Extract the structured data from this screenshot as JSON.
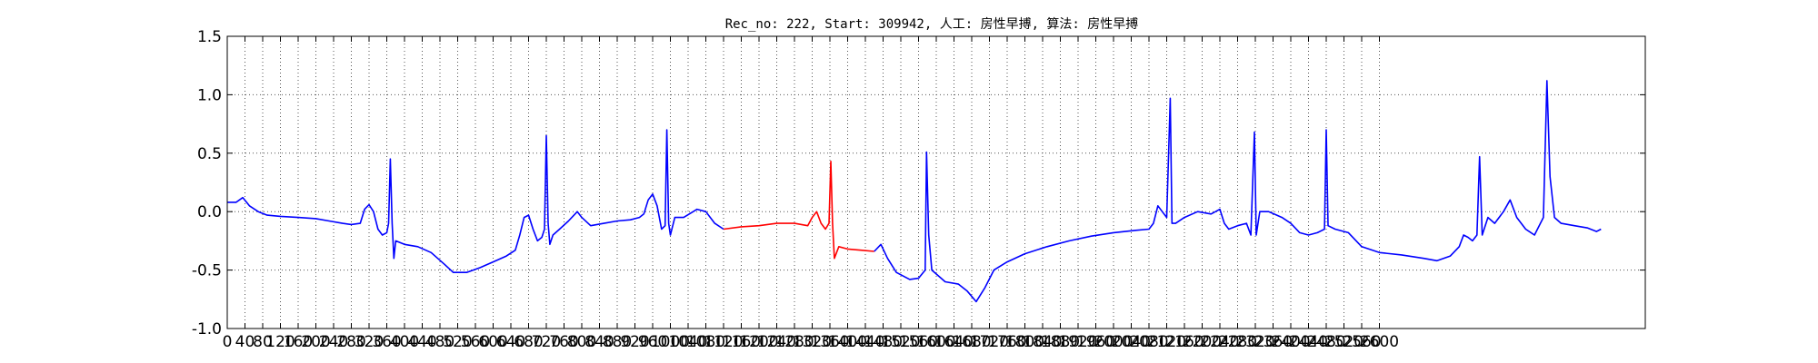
{
  "chart_data": {
    "type": "line",
    "title": "Rec_no: 222, Start: 309942, 人工: 房性早搏, 算法: 房性早搏",
    "xlabel": "",
    "ylabel": "",
    "xlim": [
      0,
      3200
    ],
    "ylim": [
      -1.0,
      1.5
    ],
    "grid": true,
    "x_ticks": [
      0,
      40,
      80,
      120,
      160,
      200,
      240,
      280,
      320,
      360,
      400,
      440,
      480,
      520,
      560,
      600,
      640,
      680,
      720,
      760,
      800,
      840,
      880,
      920,
      960,
      1000,
      1040,
      1080,
      1120,
      1160,
      1200,
      1240,
      1280,
      1320,
      1360,
      1400,
      1440,
      1480,
      1520,
      1560,
      1600,
      1640,
      1680,
      1720,
      1760,
      1800,
      1840,
      1880,
      1920,
      1960,
      2000,
      2040,
      2080,
      2120,
      2160,
      2200,
      2240,
      2280,
      2320,
      2360,
      2400,
      2440,
      2480,
      2520,
      2560,
      2600
    ],
    "y_ticks": [
      "-1.0",
      "-0.5",
      "0.0",
      "0.5",
      "1.0",
      "1.5"
    ],
    "colors": {
      "normal": "#0000ff",
      "highlight": "#ff0000"
    },
    "highlight_range": [
      1150,
      1470
    ],
    "series": [
      {
        "points": [
          [
            0,
            0.08
          ],
          [
            20,
            0.08
          ],
          [
            35,
            0.12
          ],
          [
            50,
            0.05
          ],
          [
            70,
            0.0
          ],
          [
            90,
            -0.03
          ],
          [
            120,
            -0.04
          ],
          [
            160,
            -0.05
          ],
          [
            200,
            -0.06
          ],
          [
            230,
            -0.08
          ],
          [
            260,
            -0.1
          ],
          [
            280,
            -0.11
          ],
          [
            300,
            -0.1
          ],
          [
            310,
            0.02
          ],
          [
            320,
            0.06
          ],
          [
            330,
            0.0
          ],
          [
            340,
            -0.15
          ],
          [
            350,
            -0.2
          ],
          [
            360,
            -0.18
          ],
          [
            364,
            -0.1
          ],
          [
            368,
            0.45
          ],
          [
            372,
            -0.1
          ],
          [
            376,
            -0.4
          ],
          [
            380,
            -0.25
          ],
          [
            400,
            -0.28
          ],
          [
            430,
            -0.3
          ],
          [
            460,
            -0.35
          ],
          [
            490,
            -0.45
          ],
          [
            510,
            -0.52
          ],
          [
            540,
            -0.52
          ],
          [
            570,
            -0.48
          ],
          [
            600,
            -0.43
          ],
          [
            630,
            -0.38
          ],
          [
            650,
            -0.33
          ],
          [
            660,
            -0.2
          ],
          [
            670,
            -0.05
          ],
          [
            680,
            -0.03
          ],
          [
            690,
            -0.15
          ],
          [
            700,
            -0.25
          ],
          [
            710,
            -0.22
          ],
          [
            716,
            -0.15
          ],
          [
            720,
            0.65
          ],
          [
            724,
            -0.1
          ],
          [
            728,
            -0.28
          ],
          [
            735,
            -0.2
          ],
          [
            750,
            -0.15
          ],
          [
            770,
            -0.08
          ],
          [
            790,
            0.0
          ],
          [
            800,
            -0.05
          ],
          [
            820,
            -0.12
          ],
          [
            850,
            -0.1
          ],
          [
            880,
            -0.08
          ],
          [
            910,
            -0.07
          ],
          [
            930,
            -0.05
          ],
          [
            940,
            -0.02
          ],
          [
            950,
            0.1
          ],
          [
            960,
            0.15
          ],
          [
            970,
            0.05
          ],
          [
            980,
            -0.15
          ],
          [
            988,
            -0.12
          ],
          [
            992,
            0.7
          ],
          [
            996,
            -0.1
          ],
          [
            1000,
            -0.2
          ],
          [
            1010,
            -0.05
          ],
          [
            1030,
            -0.05
          ],
          [
            1060,
            0.02
          ],
          [
            1080,
            0.0
          ],
          [
            1100,
            -0.1
          ],
          [
            1120,
            -0.15
          ],
          [
            1160,
            -0.13
          ],
          [
            1200,
            -0.12
          ],
          [
            1240,
            -0.1
          ],
          [
            1280,
            -0.1
          ],
          [
            1310,
            -0.12
          ],
          [
            1320,
            -0.05
          ],
          [
            1330,
            0.0
          ],
          [
            1340,
            -0.1
          ],
          [
            1350,
            -0.15
          ],
          [
            1358,
            -0.1
          ],
          [
            1362,
            0.43
          ],
          [
            1366,
            -0.1
          ],
          [
            1370,
            -0.4
          ],
          [
            1380,
            -0.3
          ],
          [
            1400,
            -0.32
          ],
          [
            1430,
            -0.33
          ],
          [
            1460,
            -0.34
          ],
          [
            1475,
            -0.28
          ],
          [
            1490,
            -0.4
          ],
          [
            1510,
            -0.52
          ],
          [
            1540,
            -0.58
          ],
          [
            1560,
            -0.57
          ],
          [
            1575,
            -0.5
          ],
          [
            1578,
            0.51
          ],
          [
            1583,
            -0.2
          ],
          [
            1590,
            -0.5
          ],
          [
            1620,
            -0.6
          ],
          [
            1650,
            -0.62
          ],
          [
            1670,
            -0.68
          ],
          [
            1690,
            -0.77
          ],
          [
            1710,
            -0.65
          ],
          [
            1730,
            -0.5
          ],
          [
            1760,
            -0.43
          ],
          [
            1800,
            -0.36
          ],
          [
            1850,
            -0.3
          ],
          [
            1900,
            -0.25
          ],
          [
            1950,
            -0.21
          ],
          [
            2000,
            -0.18
          ],
          [
            2050,
            -0.16
          ],
          [
            2080,
            -0.15
          ],
          [
            2090,
            -0.1
          ],
          [
            2100,
            0.05
          ],
          [
            2110,
            0.0
          ],
          [
            2120,
            -0.05
          ],
          [
            2128,
            0.97
          ],
          [
            2132,
            -0.1
          ],
          [
            2140,
            -0.1
          ],
          [
            2160,
            -0.05
          ],
          [
            2190,
            0.0
          ],
          [
            2220,
            -0.02
          ],
          [
            2240,
            0.02
          ],
          [
            2250,
            -0.1
          ],
          [
            2260,
            -0.15
          ],
          [
            2280,
            -0.12
          ],
          [
            2300,
            -0.1
          ],
          [
            2310,
            -0.2
          ],
          [
            2318,
            0.68
          ],
          [
            2322,
            -0.2
          ],
          [
            2330,
            0.0
          ],
          [
            2350,
            0.0
          ],
          [
            2380,
            -0.05
          ],
          [
            2400,
            -0.1
          ],
          [
            2420,
            -0.18
          ],
          [
            2440,
            -0.2
          ],
          [
            2460,
            -0.18
          ],
          [
            2476,
            -0.15
          ],
          [
            2480,
            0.7
          ],
          [
            2484,
            -0.12
          ],
          [
            2500,
            -0.15
          ],
          [
            2530,
            -0.18
          ],
          [
            2560,
            -0.3
          ],
          [
            2600,
            -0.35
          ],
          [
            2650,
            -0.37
          ],
          [
            2700,
            -0.4
          ],
          [
            2730,
            -0.42
          ],
          [
            2760,
            -0.38
          ],
          [
            2780,
            -0.3
          ],
          [
            2790,
            -0.2
          ],
          [
            2800,
            -0.22
          ],
          [
            2810,
            -0.25
          ],
          [
            2820,
            -0.2
          ],
          [
            2826,
            0.47
          ],
          [
            2832,
            -0.2
          ],
          [
            2845,
            -0.05
          ],
          [
            2860,
            -0.1
          ],
          [
            2880,
            0.0
          ],
          [
            2895,
            0.1
          ],
          [
            2910,
            -0.05
          ],
          [
            2930,
            -0.15
          ],
          [
            2950,
            -0.2
          ],
          [
            2970,
            -0.05
          ],
          [
            2978,
            1.12
          ],
          [
            2985,
            0.3
          ],
          [
            2995,
            -0.05
          ],
          [
            3010,
            -0.1
          ],
          [
            3040,
            -0.12
          ],
          [
            3070,
            -0.14
          ],
          [
            3090,
            -0.17
          ],
          [
            3100,
            -0.15
          ]
        ]
      }
    ]
  }
}
